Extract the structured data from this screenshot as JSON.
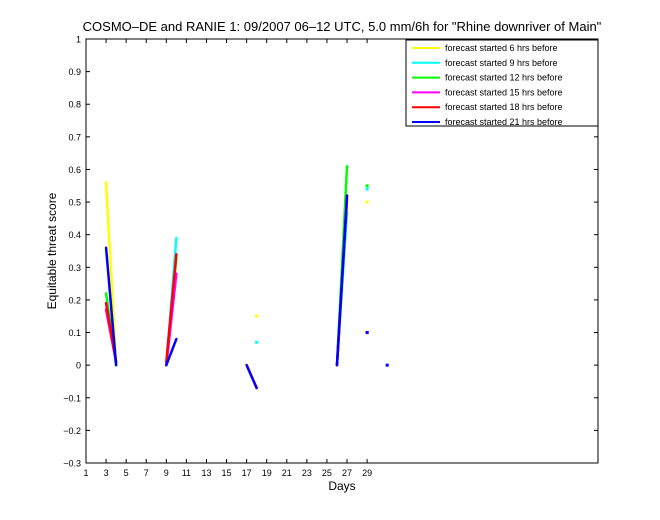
{
  "chart_data": {
    "type": "line",
    "title": "COSMO–DE and RANIE 1: 09/2007 06–12 UTC, 5.0 mm/6h for \"Rhine downriver of Main\"",
    "xlabel": "Days",
    "ylabel": "Equitable threat score",
    "xlim": [
      1,
      52
    ],
    "ylim": [
      -0.3,
      1
    ],
    "xticks": [
      1,
      3,
      5,
      7,
      9,
      11,
      13,
      15,
      17,
      19,
      21,
      23,
      25,
      27,
      29
    ],
    "xtick_labels": [
      "1",
      "3",
      "5",
      "7",
      "9",
      "11",
      "13",
      "15",
      "17",
      "19",
      "21",
      "23",
      "25",
      "27",
      "29"
    ],
    "yticks": [
      -0.3,
      -0.2,
      -0.1,
      0,
      0.1,
      0.2,
      0.3,
      0.4,
      0.5,
      0.6,
      0.7,
      0.8,
      0.9,
      1
    ],
    "ytick_labels": [
      "−0.3",
      "−0.2",
      "−0.1",
      "0",
      "0.1",
      "0.2",
      "0.3",
      "0.4",
      "0.5",
      "0.6",
      "0.7",
      "0.8",
      "0.9",
      "1"
    ],
    "grid": false,
    "legend_position": "top-right",
    "series": [
      {
        "name": "forecast started 6 hrs before",
        "color": "#ffff00",
        "x": [
          3,
          4,
          18,
          27,
          29
        ],
        "y": [
          0.56,
          0.01,
          0.15,
          0.48,
          0.5
        ]
      },
      {
        "name": "forecast started 9 hrs before",
        "color": "#00ffff",
        "x": [
          3,
          4,
          9,
          10,
          18,
          26,
          27,
          29
        ],
        "y": [
          0.17,
          0.01,
          0.0,
          0.39,
          0.07,
          0.0,
          0.47,
          0.54
        ]
      },
      {
        "name": "forecast started 12 hrs before",
        "color": "#00ff00",
        "x": [
          3,
          4,
          9,
          10,
          26,
          27,
          29
        ],
        "y": [
          0.22,
          0.0,
          0.0,
          0.33,
          0.0,
          0.61,
          0.55
        ]
      },
      {
        "name": "forecast started 15 hrs before",
        "color": "#ff00ff",
        "x": [
          3,
          4,
          9,
          10,
          26,
          27,
          29
        ],
        "y": [
          0.17,
          0.01,
          0.0,
          0.28,
          0.0,
          0.51,
          0.1
        ]
      },
      {
        "name": "forecast started 18 hrs before",
        "color": "#ff0000",
        "x": [
          3,
          4,
          9,
          10,
          17,
          18,
          26,
          27,
          29
        ],
        "y": [
          0.19,
          0.01,
          0.01,
          0.34,
          0.0,
          -0.07,
          0.0,
          0.52,
          0.1
        ]
      },
      {
        "name": "forecast started 21 hrs before",
        "color": "#0000ff",
        "x": [
          3,
          4,
          9,
          10,
          17,
          18,
          26,
          27,
          29,
          31
        ],
        "y": [
          0.36,
          0.0,
          0.0,
          0.08,
          0.0,
          -0.07,
          0.0,
          0.52,
          0.1,
          0.0
        ]
      }
    ]
  }
}
